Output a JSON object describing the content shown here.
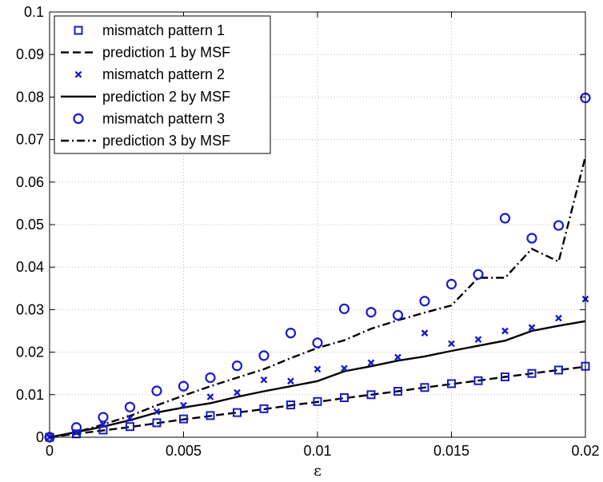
{
  "chart_data": {
    "type": "line",
    "title": "",
    "xlabel": "ε",
    "ylabel": "",
    "xlim": [
      0,
      0.02
    ],
    "ylim": [
      0,
      0.1
    ],
    "grid": true,
    "legend_position": "top-left",
    "x_tick_labels": [
      "0",
      "0.005",
      "0.01",
      "0.015",
      "0.02"
    ],
    "x_ticks": [
      0,
      0.005,
      0.01,
      0.015,
      0.02
    ],
    "y_tick_labels": [
      "0",
      "0.01",
      "0.02",
      "0.03",
      "0.04",
      "0.05",
      "0.06",
      "0.07",
      "0.08",
      "0.09",
      "0.1"
    ],
    "y_ticks": [
      0,
      0.01,
      0.02,
      0.03,
      0.04,
      0.05,
      0.06,
      0.07,
      0.08,
      0.09,
      0.1
    ],
    "x": [
      0,
      0.001,
      0.002,
      0.003,
      0.004,
      0.005,
      0.006,
      0.007,
      0.008,
      0.009,
      0.01,
      0.011,
      0.012,
      0.013,
      0.014,
      0.015,
      0.016,
      0.017,
      0.018,
      0.019,
      0.02
    ],
    "series": [
      {
        "name": "mismatch pattern 1",
        "style": "marker",
        "marker": "square",
        "color": "#1a1acc",
        "values": [
          0,
          0.0008,
          0.0017,
          0.0025,
          0.0034,
          0.0043,
          0.0051,
          0.0058,
          0.0067,
          0.0076,
          0.0084,
          0.0093,
          0.01,
          0.0108,
          0.0117,
          0.0126,
          0.0133,
          0.0142,
          0.015,
          0.0158,
          0.0167
        ]
      },
      {
        "name": "prediction 1 by MSF",
        "style": "line",
        "dash": "dashed",
        "color": "#000000",
        "values": [
          0,
          0.0008,
          0.0016,
          0.0024,
          0.0033,
          0.0042,
          0.005,
          0.0058,
          0.0066,
          0.0075,
          0.0083,
          0.0092,
          0.01,
          0.0108,
          0.0117,
          0.0125,
          0.0133,
          0.0142,
          0.015,
          0.0158,
          0.0166
        ]
      },
      {
        "name": "mismatch pattern 2",
        "style": "marker",
        "marker": "x",
        "color": "#1a1acc",
        "values": [
          0,
          0.0011,
          0.003,
          0.0045,
          0.006,
          0.0075,
          0.0095,
          0.0105,
          0.0135,
          0.0132,
          0.016,
          0.0162,
          0.0175,
          0.0188,
          0.0245,
          0.022,
          0.023,
          0.025,
          0.0258,
          0.028,
          0.0325
        ]
      },
      {
        "name": "prediction 2 by MSF",
        "style": "line",
        "dash": "solid",
        "color": "#000000",
        "values": [
          0,
          0.0012,
          0.0025,
          0.004,
          0.0058,
          0.007,
          0.008,
          0.0095,
          0.0108,
          0.012,
          0.0132,
          0.0155,
          0.0167,
          0.018,
          0.019,
          0.0203,
          0.0215,
          0.0227,
          0.025,
          0.0262,
          0.0273
        ]
      },
      {
        "name": "mismatch pattern 3",
        "style": "marker",
        "marker": "circle",
        "color": "#1a1acc",
        "values": [
          0,
          0.0023,
          0.0047,
          0.0071,
          0.0109,
          0.012,
          0.014,
          0.0168,
          0.0192,
          0.0245,
          0.0222,
          0.0302,
          0.0294,
          0.0287,
          0.032,
          0.036,
          0.0383,
          0.0515,
          0.0468,
          0.0498,
          0.0798
        ]
      },
      {
        "name": "prediction 3 by MSF",
        "style": "line",
        "dash": "dashdot",
        "color": "#000000",
        "values": [
          0,
          0.0012,
          0.003,
          0.005,
          0.0075,
          0.0098,
          0.012,
          0.014,
          0.016,
          0.0186,
          0.021,
          0.0228,
          0.0255,
          0.0275,
          0.0293,
          0.031,
          0.0375,
          0.0375,
          0.0443,
          0.0413,
          0.066
        ]
      }
    ]
  }
}
